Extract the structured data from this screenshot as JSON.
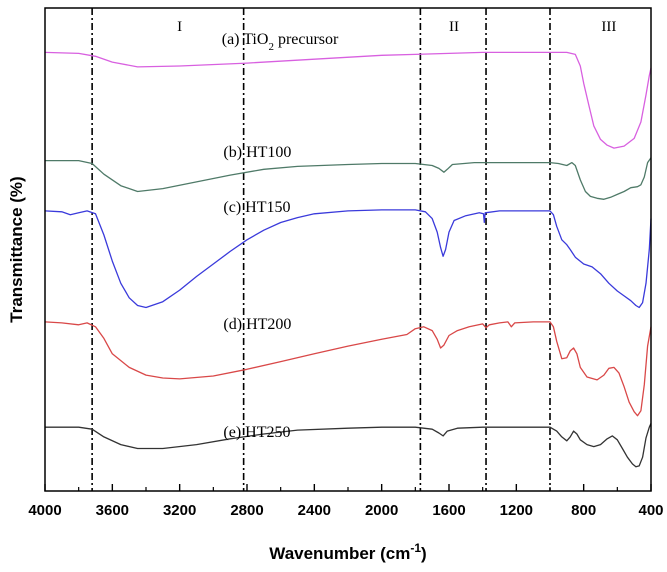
{
  "chart_data": {
    "type": "line",
    "title": "",
    "xlabel": "Wavenumber (cm",
    "xlabel_sup": "-1",
    "xlabel_end": ")",
    "ylabel": "Transmittance (%)",
    "xlim": [
      4000,
      400
    ],
    "x_reversed": true,
    "x_ticks": [
      "4000",
      "3600",
      "3200",
      "2800",
      "2400",
      "2000",
      "1600",
      "1200",
      "800",
      "400"
    ],
    "y_ticks_shown": false,
    "grid": false,
    "legend": "none",
    "reference_lines": [
      3720,
      2820,
      1770,
      1380,
      1000
    ],
    "regions": [
      {
        "label": "I",
        "x": 3200
      },
      {
        "label": "II",
        "x": 1570
      },
      {
        "label": "III",
        "x": 650
      }
    ],
    "series": [
      {
        "name": "(a) TiO2 precursor",
        "label_main": "(a) TiO",
        "label_sub": "2",
        "label_end": " precursor",
        "label_x": 2950,
        "color": "#d860e0",
        "points": [
          [
            4000,
            46
          ],
          [
            3800,
            47
          ],
          [
            3700,
            50
          ],
          [
            3600,
            56
          ],
          [
            3450,
            61
          ],
          [
            3200,
            60
          ],
          [
            2800,
            57
          ],
          [
            2400,
            53
          ],
          [
            2000,
            49
          ],
          [
            1800,
            48
          ],
          [
            1600,
            47
          ],
          [
            1400,
            46
          ],
          [
            1200,
            46
          ],
          [
            1000,
            46
          ],
          [
            900,
            46
          ],
          [
            850,
            48
          ],
          [
            820,
            60
          ],
          [
            800,
            78
          ],
          [
            770,
            100
          ],
          [
            740,
            122
          ],
          [
            700,
            136
          ],
          [
            660,
            142
          ],
          [
            620,
            145
          ],
          [
            560,
            143
          ],
          [
            500,
            135
          ],
          [
            460,
            118
          ],
          [
            430,
            90
          ],
          [
            410,
            70
          ],
          [
            400,
            62
          ]
        ]
      },
      {
        "name": "(b) HT100",
        "label_x": 2940,
        "color": "#4f7a68",
        "points": [
          [
            4000,
            158
          ],
          [
            3800,
            158
          ],
          [
            3720,
            161
          ],
          [
            3650,
            172
          ],
          [
            3550,
            184
          ],
          [
            3450,
            190
          ],
          [
            3300,
            187
          ],
          [
            3100,
            180
          ],
          [
            2900,
            173
          ],
          [
            2700,
            167
          ],
          [
            2500,
            164
          ],
          [
            2200,
            162
          ],
          [
            2000,
            161
          ],
          [
            1800,
            161
          ],
          [
            1700,
            163
          ],
          [
            1660,
            166
          ],
          [
            1630,
            170
          ],
          [
            1610,
            167
          ],
          [
            1580,
            162
          ],
          [
            1450,
            160
          ],
          [
            1200,
            160
          ],
          [
            1000,
            160
          ],
          [
            950,
            161
          ],
          [
            900,
            163
          ],
          [
            870,
            160
          ],
          [
            850,
            163
          ],
          [
            820,
            178
          ],
          [
            790,
            190
          ],
          [
            760,
            195
          ],
          [
            720,
            197
          ],
          [
            680,
            198
          ],
          [
            640,
            196
          ],
          [
            600,
            193
          ],
          [
            560,
            190
          ],
          [
            520,
            186
          ],
          [
            480,
            185
          ],
          [
            460,
            183
          ],
          [
            440,
            175
          ],
          [
            420,
            160
          ],
          [
            400,
            155
          ]
        ]
      },
      {
        "name": "(c) HT150",
        "label_x": 2940,
        "color": "#3a3adb",
        "points": [
          [
            4000,
            210
          ],
          [
            3900,
            211
          ],
          [
            3850,
            214
          ],
          [
            3800,
            212
          ],
          [
            3750,
            210
          ],
          [
            3700,
            213
          ],
          [
            3650,
            235
          ],
          [
            3600,
            262
          ],
          [
            3550,
            285
          ],
          [
            3500,
            300
          ],
          [
            3450,
            308
          ],
          [
            3400,
            310
          ],
          [
            3300,
            304
          ],
          [
            3200,
            292
          ],
          [
            3100,
            278
          ],
          [
            3000,
            265
          ],
          [
            2900,
            252
          ],
          [
            2800,
            240
          ],
          [
            2700,
            230
          ],
          [
            2600,
            222
          ],
          [
            2500,
            217
          ],
          [
            2400,
            213
          ],
          [
            2200,
            210
          ],
          [
            2000,
            209
          ],
          [
            1800,
            209
          ],
          [
            1740,
            211
          ],
          [
            1700,
            218
          ],
          [
            1670,
            232
          ],
          [
            1650,
            248
          ],
          [
            1635,
            257
          ],
          [
            1620,
            250
          ],
          [
            1600,
            232
          ],
          [
            1570,
            220
          ],
          [
            1500,
            215
          ],
          [
            1420,
            212
          ],
          [
            1395,
            213
          ],
          [
            1390,
            222
          ],
          [
            1385,
            212
          ],
          [
            1300,
            210
          ],
          [
            1200,
            210
          ],
          [
            1000,
            210
          ],
          [
            980,
            214
          ],
          [
            960,
            226
          ],
          [
            930,
            240
          ],
          [
            900,
            245
          ],
          [
            880,
            250
          ],
          [
            850,
            258
          ],
          [
            800,
            265
          ],
          [
            750,
            268
          ],
          [
            700,
            275
          ],
          [
            650,
            285
          ],
          [
            600,
            293
          ],
          [
            560,
            298
          ],
          [
            520,
            303
          ],
          [
            490,
            308
          ],
          [
            470,
            310
          ],
          [
            450,
            305
          ],
          [
            430,
            285
          ],
          [
            410,
            250
          ],
          [
            400,
            218
          ]
        ]
      },
      {
        "name": "(d) HT200",
        "label_x": 2940,
        "color": "#d94848",
        "points": [
          [
            4000,
            325
          ],
          [
            3900,
            326
          ],
          [
            3800,
            328
          ],
          [
            3750,
            326
          ],
          [
            3700,
            330
          ],
          [
            3650,
            342
          ],
          [
            3600,
            358
          ],
          [
            3500,
            372
          ],
          [
            3400,
            380
          ],
          [
            3300,
            383
          ],
          [
            3200,
            384
          ],
          [
            3000,
            381
          ],
          [
            2800,
            374
          ],
          [
            2600,
            366
          ],
          [
            2400,
            358
          ],
          [
            2200,
            350
          ],
          [
            2000,
            343
          ],
          [
            1850,
            338
          ],
          [
            1800,
            332
          ],
          [
            1750,
            330
          ],
          [
            1700,
            334
          ],
          [
            1670,
            343
          ],
          [
            1650,
            352
          ],
          [
            1630,
            349
          ],
          [
            1600,
            339
          ],
          [
            1550,
            334
          ],
          [
            1480,
            330
          ],
          [
            1400,
            327
          ],
          [
            1380,
            331
          ],
          [
            1360,
            328
          ],
          [
            1300,
            326
          ],
          [
            1250,
            325
          ],
          [
            1230,
            330
          ],
          [
            1210,
            326
          ],
          [
            1100,
            325
          ],
          [
            1000,
            325
          ],
          [
            980,
            330
          ],
          [
            960,
            345
          ],
          [
            930,
            363
          ],
          [
            900,
            362
          ],
          [
            880,
            355
          ],
          [
            860,
            352
          ],
          [
            840,
            358
          ],
          [
            820,
            372
          ],
          [
            780,
            382
          ],
          [
            720,
            385
          ],
          [
            680,
            380
          ],
          [
            650,
            373
          ],
          [
            620,
            372
          ],
          [
            590,
            378
          ],
          [
            560,
            392
          ],
          [
            530,
            408
          ],
          [
            500,
            418
          ],
          [
            480,
            422
          ],
          [
            460,
            417
          ],
          [
            440,
            390
          ],
          [
            420,
            350
          ],
          [
            400,
            330
          ]
        ]
      },
      {
        "name": "(e) HT250",
        "label_x": 2940,
        "color": "#333333",
        "points": [
          [
            4000,
            434
          ],
          [
            3800,
            434
          ],
          [
            3720,
            436
          ],
          [
            3650,
            444
          ],
          [
            3550,
            452
          ],
          [
            3450,
            456
          ],
          [
            3300,
            456
          ],
          [
            3100,
            452
          ],
          [
            2900,
            446
          ],
          [
            2700,
            441
          ],
          [
            2500,
            437
          ],
          [
            2200,
            435
          ],
          [
            2000,
            434
          ],
          [
            1800,
            434
          ],
          [
            1700,
            436
          ],
          [
            1660,
            440
          ],
          [
            1635,
            443
          ],
          [
            1610,
            438
          ],
          [
            1550,
            435
          ],
          [
            1400,
            434
          ],
          [
            1200,
            434
          ],
          [
            1000,
            434
          ],
          [
            960,
            438
          ],
          [
            930,
            444
          ],
          [
            900,
            448
          ],
          [
            880,
            444
          ],
          [
            860,
            438
          ],
          [
            840,
            441
          ],
          [
            820,
            447
          ],
          [
            780,
            452
          ],
          [
            740,
            454
          ],
          [
            700,
            452
          ],
          [
            660,
            446
          ],
          [
            630,
            443
          ],
          [
            600,
            447
          ],
          [
            570,
            456
          ],
          [
            540,
            465
          ],
          [
            510,
            472
          ],
          [
            490,
            475
          ],
          [
            470,
            474
          ],
          [
            450,
            465
          ],
          [
            430,
            445
          ],
          [
            410,
            434
          ],
          [
            400,
            430
          ]
        ]
      }
    ]
  }
}
